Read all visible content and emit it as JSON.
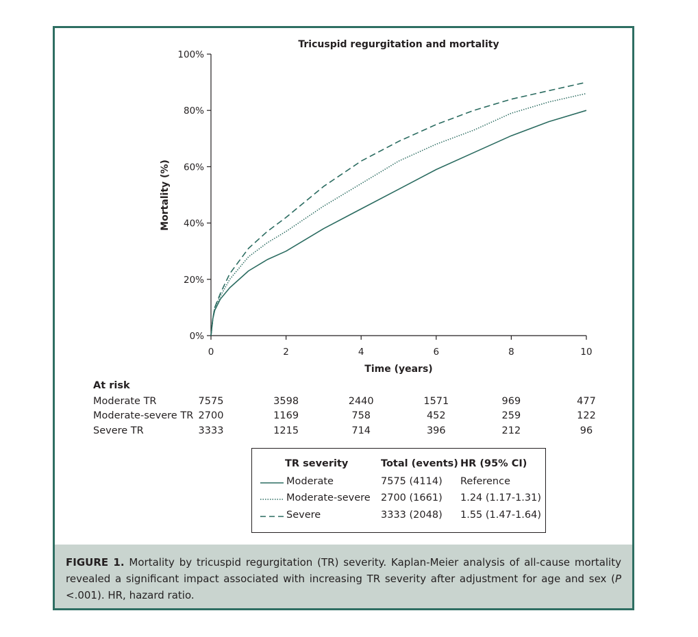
{
  "chart_data": {
    "type": "line",
    "title": "Tricuspid regurgitation and mortality",
    "xlabel": "Time (years)",
    "ylabel": "Mortality (%)",
    "xlim": [
      0,
      10
    ],
    "ylim": [
      0,
      100
    ],
    "x_ticks": [
      "0",
      "2",
      "4",
      "6",
      "8",
      "10"
    ],
    "y_ticks": [
      "0%",
      "20%",
      "40%",
      "60%",
      "80%",
      "100%"
    ],
    "x": [
      0,
      0.05,
      0.1,
      0.25,
      0.5,
      1,
      1.5,
      2,
      3,
      4,
      5,
      6,
      7,
      8,
      9,
      10
    ],
    "series": [
      {
        "name": "Moderate",
        "style": "solid",
        "values": [
          0,
          6,
          9,
          13,
          17,
          23,
          27,
          30,
          38,
          45,
          52,
          59,
          65,
          71,
          76,
          80
        ]
      },
      {
        "name": "Moderate-severe",
        "style": "dotted",
        "values": [
          0,
          6,
          10,
          14,
          20,
          28,
          33,
          37,
          46,
          54,
          62,
          68,
          73,
          79,
          83,
          86
        ]
      },
      {
        "name": "Severe",
        "style": "dashed",
        "values": [
          0,
          6,
          10,
          15,
          22,
          31,
          37,
          42,
          53,
          62,
          69,
          75,
          80,
          84,
          87,
          90
        ]
      }
    ]
  },
  "at_risk": {
    "title": "At risk",
    "rows": [
      {
        "label": "Moderate TR",
        "values": [
          "7575",
          "3598",
          "2440",
          "1571",
          "969",
          "477"
        ]
      },
      {
        "label": "Moderate-severe TR",
        "values": [
          "2700",
          "1169",
          "758",
          "452",
          "259",
          "122"
        ]
      },
      {
        "label": "Severe TR",
        "values": [
          "3333",
          "1215",
          "714",
          "396",
          "212",
          "96"
        ]
      }
    ]
  },
  "legend": {
    "headers": {
      "severity": "TR severity",
      "total": "Total (events)",
      "hr": "HR (95% CI)"
    },
    "rows": [
      {
        "severity": "Moderate",
        "total": "7575 (4114)",
        "hr": "Reference"
      },
      {
        "severity": "Moderate-severe",
        "total": "2700 (1661)",
        "hr": "1.24 (1.17-1.31)"
      },
      {
        "severity": "Severe",
        "total": "3333 (2048)",
        "hr": "1.55 (1.47-1.64)"
      }
    ]
  },
  "caption": {
    "label": "FIGURE 1.",
    "text_a": " Mortality by tricuspid regurgitation (TR) severity. Kaplan-Meier analysis of all-cause mortality revealed a significant impact associated with increasing TR severity after adjustment for age and sex (",
    "p_symbol": "P",
    "text_b": " <.001). HR, hazard ratio."
  },
  "colors": {
    "line": "#2a6b60",
    "frame": "#2e6e62",
    "caption_bg": "#c9d4cf"
  }
}
